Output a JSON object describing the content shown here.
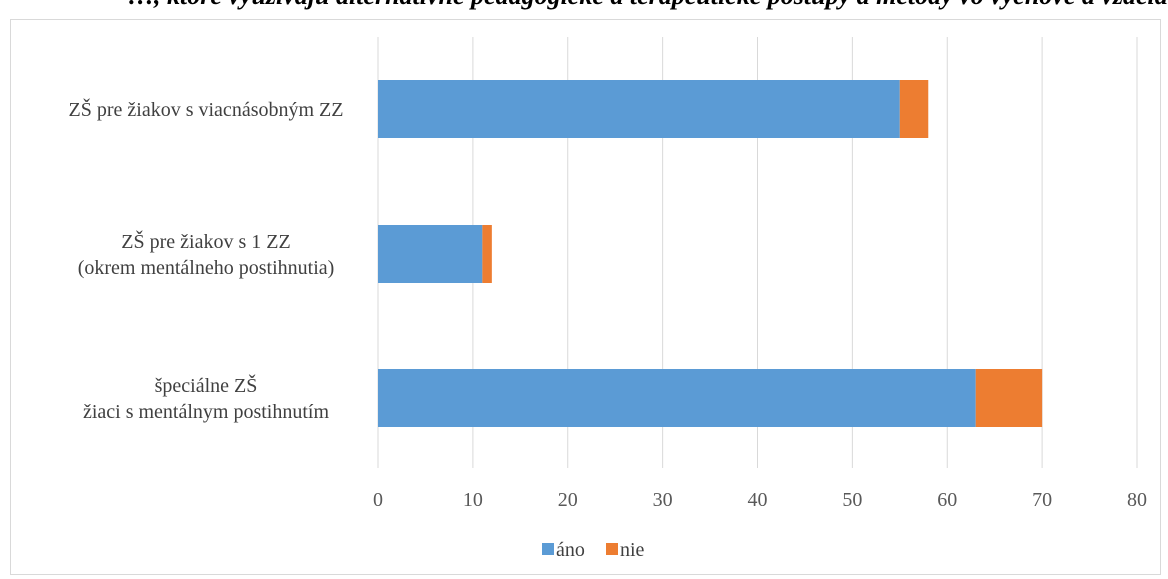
{
  "caption": {
    "text": "…, ktoré využívajú alternatívne pedagogické a terapeutické postupy a metódy vo výchove a vzdelávaní žiakov so ZZ"
  },
  "chart_data": {
    "type": "bar",
    "orientation": "horizontal",
    "stacked": true,
    "categories": [
      {
        "lines": [
          "ZŠ pre žiakov s viacnásobným ZZ"
        ]
      },
      {
        "lines": [
          "ZŠ pre žiakov s 1 ZZ",
          "(okrem mentálneho postihnutia)"
        ]
      },
      {
        "lines": [
          "špeciálne ZŠ",
          "žiaci s mentálnym postihnutím"
        ]
      }
    ],
    "series": [
      {
        "name": "áno",
        "color": "#5b9bd5",
        "values": [
          55,
          11,
          63
        ]
      },
      {
        "name": "nie",
        "color": "#ed7d31",
        "values": [
          3,
          1,
          7
        ]
      }
    ],
    "xlim": [
      0,
      80
    ],
    "xticks": [
      0,
      10,
      20,
      30,
      40,
      50,
      60,
      70,
      80
    ],
    "grid": "vertical",
    "gridColor": "#d9d9d9",
    "legend": "bottom-center"
  }
}
